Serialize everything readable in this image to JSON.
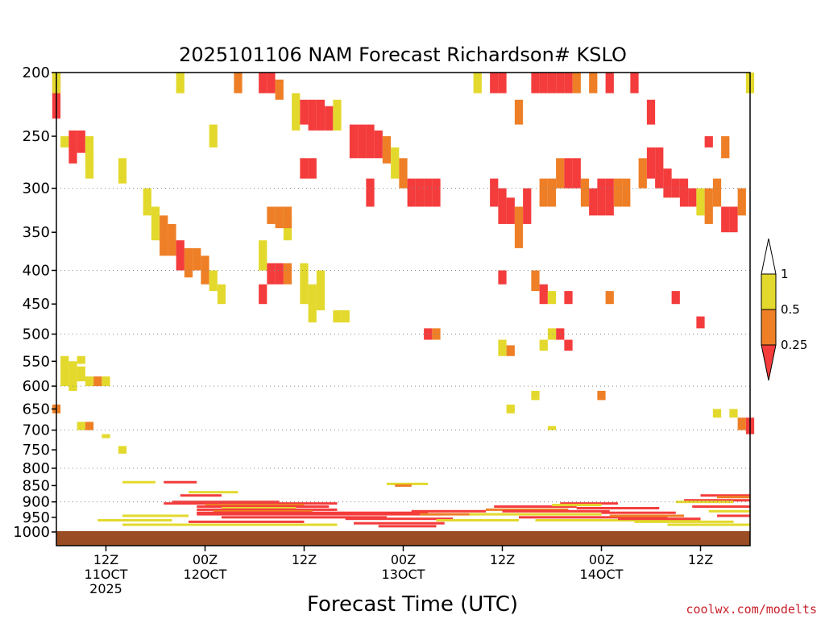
{
  "chart_data": {
    "type": "heatmap",
    "title": "2025101106 NAM Forecast Richardson# KSLO",
    "xlabel": "Forecast Time (UTC)",
    "ylabel": "",
    "y_scale": "log-pressure (hPa), inverted",
    "y_ticks": [
      200,
      250,
      300,
      350,
      400,
      450,
      500,
      550,
      600,
      650,
      700,
      750,
      800,
      850,
      900,
      950,
      1000
    ],
    "y_gridlines": [
      300,
      400,
      500,
      600,
      700,
      800,
      900
    ],
    "x_ticks": [
      {
        "hour": 6,
        "line1": "12Z",
        "line2": "11OCT",
        "line3": "2025"
      },
      {
        "hour": 18,
        "line1": "00Z",
        "line2": "12OCT",
        "line3": ""
      },
      {
        "hour": 30,
        "line1": "12Z",
        "line2": "",
        "line3": ""
      },
      {
        "hour": 42,
        "line1": "00Z",
        "line2": "13OCT",
        "line3": ""
      },
      {
        "hour": 54,
        "line1": "12Z",
        "line2": "",
        "line3": ""
      },
      {
        "hour": 66,
        "line1": "00Z",
        "line2": "14OCT",
        "line3": ""
      },
      {
        "hour": 78,
        "line1": "12Z",
        "line2": "",
        "line3": ""
      }
    ],
    "x_range_hours": [
      0,
      84
    ],
    "colorbar": {
      "levels": [
        "0.25",
        "0.5",
        "1"
      ],
      "colors": {
        "lt_025": "#f43c3c",
        "025_05": "#ee7f26",
        "05_1": "#e3d92d",
        "gt_1": "#ffffff"
      }
    },
    "ground_color": "#9a4c24",
    "categories": [
      "lt_025",
      "025_05",
      "05_1"
    ],
    "cells": [
      {
        "h": 0,
        "p1": 200,
        "p2": 235,
        "c": "lt_025"
      },
      {
        "h": 0,
        "p1": 200,
        "p2": 215,
        "c": "05_1"
      },
      {
        "h": 1,
        "p1": 250,
        "p2": 260,
        "c": "05_1"
      },
      {
        "h": 2,
        "p1": 245,
        "p2": 275,
        "c": "lt_025"
      },
      {
        "h": 3,
        "p1": 245,
        "p2": 265,
        "c": "lt_025"
      },
      {
        "h": 4,
        "p1": 250,
        "p2": 275,
        "c": "05_1"
      },
      {
        "h": 4,
        "p1": 265,
        "p2": 290,
        "c": "05_1"
      },
      {
        "h": 8,
        "p1": 270,
        "p2": 295,
        "c": "05_1"
      },
      {
        "h": 11,
        "p1": 300,
        "p2": 330,
        "c": "05_1"
      },
      {
        "h": 12,
        "p1": 320,
        "p2": 360,
        "c": "05_1"
      },
      {
        "h": 13,
        "p1": 330,
        "p2": 380,
        "c": "025_05"
      },
      {
        "h": 14,
        "p1": 340,
        "p2": 380,
        "c": "025_05"
      },
      {
        "h": 15,
        "p1": 360,
        "p2": 400,
        "c": "lt_025"
      },
      {
        "h": 16,
        "p1": 370,
        "p2": 410,
        "c": "025_05"
      },
      {
        "h": 17,
        "p1": 370,
        "p2": 400,
        "c": "025_05"
      },
      {
        "h": 18,
        "p1": 380,
        "p2": 420,
        "c": "025_05"
      },
      {
        "h": 19,
        "p1": 400,
        "p2": 430,
        "c": "05_1"
      },
      {
        "h": 20,
        "p1": 420,
        "p2": 450,
        "c": "05_1"
      },
      {
        "h": 15,
        "p1": 200,
        "p2": 215,
        "c": "05_1"
      },
      {
        "h": 19,
        "p1": 240,
        "p2": 260,
        "c": "05_1"
      },
      {
        "h": 22,
        "p1": 200,
        "p2": 215,
        "c": "025_05"
      },
      {
        "h": 25,
        "p1": 200,
        "p2": 215,
        "c": "lt_025"
      },
      {
        "h": 26,
        "p1": 200,
        "p2": 215,
        "c": "lt_025"
      },
      {
        "h": 27,
        "p1": 205,
        "p2": 220,
        "c": "025_05"
      },
      {
        "h": 29,
        "p1": 215,
        "p2": 245,
        "c": "05_1"
      },
      {
        "h": 30,
        "p1": 220,
        "p2": 240,
        "c": "lt_025"
      },
      {
        "h": 31,
        "p1": 220,
        "p2": 245,
        "c": "lt_025"
      },
      {
        "h": 32,
        "p1": 220,
        "p2": 245,
        "c": "lt_025"
      },
      {
        "h": 33,
        "p1": 225,
        "p2": 245,
        "c": "lt_025"
      },
      {
        "h": 34,
        "p1": 220,
        "p2": 245,
        "c": "05_1"
      },
      {
        "h": 36,
        "p1": 240,
        "p2": 270,
        "c": "lt_025"
      },
      {
        "h": 37,
        "p1": 240,
        "p2": 270,
        "c": "lt_025"
      },
      {
        "h": 38,
        "p1": 240,
        "p2": 270,
        "c": "lt_025"
      },
      {
        "h": 39,
        "p1": 245,
        "p2": 270,
        "c": "lt_025"
      },
      {
        "h": 40,
        "p1": 250,
        "p2": 275,
        "c": "025_05"
      },
      {
        "h": 41,
        "p1": 260,
        "p2": 290,
        "c": "05_1"
      },
      {
        "h": 42,
        "p1": 270,
        "p2": 300,
        "c": "025_05"
      },
      {
        "h": 43,
        "p1": 290,
        "p2": 320,
        "c": "lt_025"
      },
      {
        "h": 44,
        "p1": 290,
        "p2": 320,
        "c": "lt_025"
      },
      {
        "h": 45,
        "p1": 290,
        "p2": 320,
        "c": "lt_025"
      },
      {
        "h": 46,
        "p1": 290,
        "p2": 320,
        "c": "lt_025"
      },
      {
        "h": 38,
        "p1": 290,
        "p2": 320,
        "c": "lt_025"
      },
      {
        "h": 30,
        "p1": 270,
        "p2": 290,
        "c": "lt_025"
      },
      {
        "h": 31,
        "p1": 270,
        "p2": 290,
        "c": "lt_025"
      },
      {
        "h": 28,
        "p1": 330,
        "p2": 360,
        "c": "05_1"
      },
      {
        "h": 28,
        "p1": 320,
        "p2": 345,
        "c": "025_05"
      },
      {
        "h": 26,
        "p1": 320,
        "p2": 340,
        "c": "025_05"
      },
      {
        "h": 27,
        "p1": 320,
        "p2": 345,
        "c": "025_05"
      },
      {
        "h": 25,
        "p1": 360,
        "p2": 400,
        "c": "05_1"
      },
      {
        "h": 26,
        "p1": 390,
        "p2": 420,
        "c": "lt_025"
      },
      {
        "h": 27,
        "p1": 390,
        "p2": 420,
        "c": "lt_025"
      },
      {
        "h": 28,
        "p1": 390,
        "p2": 420,
        "c": "025_05"
      },
      {
        "h": 30,
        "p1": 390,
        "p2": 450,
        "c": "05_1"
      },
      {
        "h": 31,
        "p1": 420,
        "p2": 480,
        "c": "05_1"
      },
      {
        "h": 32,
        "p1": 400,
        "p2": 460,
        "c": "05_1"
      },
      {
        "h": 25,
        "p1": 420,
        "p2": 450,
        "c": "lt_025"
      },
      {
        "h": 34,
        "p1": 460,
        "p2": 480,
        "c": "05_1"
      },
      {
        "h": 35,
        "p1": 460,
        "p2": 480,
        "c": "05_1"
      },
      {
        "h": 45,
        "p1": 490,
        "p2": 510,
        "c": "lt_025"
      },
      {
        "h": 46,
        "p1": 490,
        "p2": 510,
        "c": "025_05"
      },
      {
        "h": 51,
        "p1": 200,
        "p2": 215,
        "c": "05_1"
      },
      {
        "h": 53,
        "p1": 200,
        "p2": 215,
        "c": "lt_025"
      },
      {
        "h": 54,
        "p1": 200,
        "p2": 215,
        "c": "lt_025"
      },
      {
        "h": 56,
        "p1": 220,
        "p2": 240,
        "c": "025_05"
      },
      {
        "h": 58,
        "p1": 200,
        "p2": 215,
        "c": "lt_025"
      },
      {
        "h": 59,
        "p1": 200,
        "p2": 215,
        "c": "lt_025"
      },
      {
        "h": 60,
        "p1": 200,
        "p2": 215,
        "c": "lt_025"
      },
      {
        "h": 61,
        "p1": 200,
        "p2": 215,
        "c": "lt_025"
      },
      {
        "h": 62,
        "p1": 200,
        "p2": 215,
        "c": "lt_025"
      },
      {
        "h": 63,
        "p1": 200,
        "p2": 215,
        "c": "025_05"
      },
      {
        "h": 65,
        "p1": 200,
        "p2": 215,
        "c": "025_05"
      },
      {
        "h": 67,
        "p1": 200,
        "p2": 215,
        "c": "lt_025"
      },
      {
        "h": 70,
        "p1": 200,
        "p2": 215,
        "c": "lt_025"
      },
      {
        "h": 72,
        "p1": 220,
        "p2": 240,
        "c": "lt_025"
      },
      {
        "h": 53,
        "p1": 290,
        "p2": 320,
        "c": "lt_025"
      },
      {
        "h": 54,
        "p1": 300,
        "p2": 340,
        "c": "lt_025"
      },
      {
        "h": 55,
        "p1": 310,
        "p2": 340,
        "c": "lt_025"
      },
      {
        "h": 56,
        "p1": 320,
        "p2": 370,
        "c": "025_05"
      },
      {
        "h": 57,
        "p1": 300,
        "p2": 340,
        "c": "lt_025"
      },
      {
        "h": 59,
        "p1": 290,
        "p2": 320,
        "c": "025_05"
      },
      {
        "h": 60,
        "p1": 290,
        "p2": 320,
        "c": "025_05"
      },
      {
        "h": 61,
        "p1": 270,
        "p2": 300,
        "c": "025_05"
      },
      {
        "h": 62,
        "p1": 270,
        "p2": 300,
        "c": "lt_025"
      },
      {
        "h": 63,
        "p1": 270,
        "p2": 300,
        "c": "lt_025"
      },
      {
        "h": 64,
        "p1": 290,
        "p2": 320,
        "c": "025_05"
      },
      {
        "h": 65,
        "p1": 300,
        "p2": 330,
        "c": "lt_025"
      },
      {
        "h": 66,
        "p1": 290,
        "p2": 330,
        "c": "lt_025"
      },
      {
        "h": 67,
        "p1": 290,
        "p2": 330,
        "c": "lt_025"
      },
      {
        "h": 68,
        "p1": 290,
        "p2": 320,
        "c": "025_05"
      },
      {
        "h": 69,
        "p1": 290,
        "p2": 320,
        "c": "025_05"
      },
      {
        "h": 71,
        "p1": 270,
        "p2": 300,
        "c": "025_05"
      },
      {
        "h": 72,
        "p1": 260,
        "p2": 290,
        "c": "lt_025"
      },
      {
        "h": 73,
        "p1": 260,
        "p2": 300,
        "c": "lt_025"
      },
      {
        "h": 74,
        "p1": 280,
        "p2": 310,
        "c": "lt_025"
      },
      {
        "h": 75,
        "p1": 290,
        "p2": 310,
        "c": "lt_025"
      },
      {
        "h": 76,
        "p1": 290,
        "p2": 320,
        "c": "lt_025"
      },
      {
        "h": 77,
        "p1": 300,
        "p2": 320,
        "c": "lt_025"
      },
      {
        "h": 78,
        "p1": 300,
        "p2": 330,
        "c": "05_1"
      },
      {
        "h": 79,
        "p1": 300,
        "p2": 340,
        "c": "025_05"
      },
      {
        "h": 80,
        "p1": 290,
        "p2": 320,
        "c": "025_05"
      },
      {
        "h": 81,
        "p1": 320,
        "p2": 350,
        "c": "lt_025"
      },
      {
        "h": 82,
        "p1": 320,
        "p2": 350,
        "c": "lt_025"
      },
      {
        "h": 83,
        "p1": 300,
        "p2": 330,
        "c": "025_05"
      },
      {
        "h": 79,
        "p1": 250,
        "p2": 260,
        "c": "lt_025"
      },
      {
        "h": 81,
        "p1": 250,
        "p2": 270,
        "c": "025_05"
      },
      {
        "h": 84,
        "p1": 200,
        "p2": 215,
        "c": "05_1"
      },
      {
        "h": 54,
        "p1": 400,
        "p2": 420,
        "c": "lt_025"
      },
      {
        "h": 58,
        "p1": 400,
        "p2": 430,
        "c": "025_05"
      },
      {
        "h": 59,
        "p1": 420,
        "p2": 450,
        "c": "lt_025"
      },
      {
        "h": 60,
        "p1": 430,
        "p2": 450,
        "c": "05_1"
      },
      {
        "h": 62,
        "p1": 430,
        "p2": 450,
        "c": "lt_025"
      },
      {
        "h": 67,
        "p1": 430,
        "p2": 450,
        "c": "025_05"
      },
      {
        "h": 75,
        "p1": 430,
        "p2": 450,
        "c": "lt_025"
      },
      {
        "h": 78,
        "p1": 470,
        "p2": 490,
        "c": "lt_025"
      },
      {
        "h": 54,
        "p1": 510,
        "p2": 540,
        "c": "05_1"
      },
      {
        "h": 55,
        "p1": 520,
        "p2": 540,
        "c": "025_05"
      },
      {
        "h": 59,
        "p1": 510,
        "p2": 530,
        "c": "05_1"
      },
      {
        "h": 61,
        "p1": 490,
        "p2": 510,
        "c": "lt_025"
      },
      {
        "h": 62,
        "p1": 510,
        "p2": 530,
        "c": "lt_025"
      },
      {
        "h": 60,
        "p1": 490,
        "p2": 510,
        "c": "05_1"
      },
      {
        "h": 1,
        "p1": 540,
        "p2": 600,
        "c": "05_1"
      },
      {
        "h": 2,
        "p1": 550,
        "p2": 610,
        "c": "05_1"
      },
      {
        "h": 3,
        "p1": 560,
        "p2": 590,
        "c": "05_1"
      },
      {
        "h": 4,
        "p1": 580,
        "p2": 600,
        "c": "05_1"
      },
      {
        "h": 3,
        "p1": 540,
        "p2": 555,
        "c": "05_1"
      },
      {
        "h": 5,
        "p1": 580,
        "p2": 600,
        "c": "025_05"
      },
      {
        "h": 6,
        "p1": 580,
        "p2": 600,
        "c": "05_1"
      },
      {
        "h": 0,
        "p1": 640,
        "p2": 660,
        "c": "025_05"
      },
      {
        "h": 3,
        "p1": 680,
        "p2": 700,
        "c": "05_1"
      },
      {
        "h": 4,
        "p1": 680,
        "p2": 700,
        "c": "025_05"
      },
      {
        "h": 6,
        "p1": 710,
        "p2": 720,
        "c": "05_1"
      },
      {
        "h": 8,
        "p1": 740,
        "p2": 760,
        "c": "05_1"
      },
      {
        "h": 55,
        "p1": 640,
        "p2": 660,
        "c": "05_1"
      },
      {
        "h": 58,
        "p1": 610,
        "p2": 630,
        "c": "05_1"
      },
      {
        "h": 60,
        "p1": 690,
        "p2": 700,
        "c": "05_1"
      },
      {
        "h": 66,
        "p1": 610,
        "p2": 630,
        "c": "025_05"
      },
      {
        "h": 80,
        "p1": 650,
        "p2": 670,
        "c": "05_1"
      },
      {
        "h": 82,
        "p1": 650,
        "p2": 670,
        "c": "05_1"
      },
      {
        "h": 83,
        "p1": 670,
        "p2": 700,
        "c": "025_05"
      },
      {
        "h": 84,
        "p1": 670,
        "p2": 710,
        "c": "lt_025"
      }
    ],
    "bl_rows": [
      {
        "p": 840,
        "c": "05_1",
        "x0": 8,
        "x1": 12
      },
      {
        "p": 840,
        "c": "lt_025",
        "x0": 13,
        "x1": 17
      },
      {
        "p": 845,
        "c": "05_1",
        "x0": 40,
        "x1": 45
      },
      {
        "p": 850,
        "c": "025_05",
        "x0": 41,
        "x1": 43
      },
      {
        "p": 870,
        "c": "05_1",
        "x0": 16,
        "x1": 22
      },
      {
        "p": 880,
        "c": "lt_025",
        "x0": 15,
        "x1": 20
      },
      {
        "p": 900,
        "c": "lt_025",
        "x0": 14,
        "x1": 27
      },
      {
        "p": 905,
        "c": "lt_025",
        "x0": 13,
        "x1": 34
      },
      {
        "p": 910,
        "c": "025_05",
        "x0": 18,
        "x1": 30
      },
      {
        "p": 915,
        "c": "lt_025",
        "x0": 17,
        "x1": 33
      },
      {
        "p": 920,
        "c": "05_1",
        "x0": 20,
        "x1": 29
      },
      {
        "p": 925,
        "c": "lt_025",
        "x0": 17,
        "x1": 34
      },
      {
        "p": 930,
        "c": "025_05",
        "x0": 19,
        "x1": 31
      },
      {
        "p": 935,
        "c": "lt_025",
        "x0": 17,
        "x1": 45
      },
      {
        "p": 940,
        "c": "lt_025",
        "x0": 17,
        "x1": 47
      },
      {
        "p": 945,
        "c": "05_1",
        "x0": 8,
        "x1": 16
      },
      {
        "p": 950,
        "c": "lt_025",
        "x0": 20,
        "x1": 40
      },
      {
        "p": 955,
        "c": "lt_025",
        "x0": 35,
        "x1": 48
      },
      {
        "p": 960,
        "c": "05_1",
        "x0": 5,
        "x1": 14
      },
      {
        "p": 965,
        "c": "lt_025",
        "x0": 16,
        "x1": 30
      },
      {
        "p": 970,
        "c": "lt_025",
        "x0": 36,
        "x1": 47
      },
      {
        "p": 975,
        "c": "05_1",
        "x0": 8,
        "x1": 34
      },
      {
        "p": 980,
        "c": "lt_025",
        "x0": 39,
        "x1": 46
      },
      {
        "p": 930,
        "c": "lt_025",
        "x0": 43,
        "x1": 52
      },
      {
        "p": 940,
        "c": "025_05",
        "x0": 44,
        "x1": 50
      },
      {
        "p": 960,
        "c": "05_1",
        "x0": 46,
        "x1": 56
      },
      {
        "p": 915,
        "c": "lt_025",
        "x0": 53,
        "x1": 63
      },
      {
        "p": 925,
        "c": "025_05",
        "x0": 52,
        "x1": 62
      },
      {
        "p": 930,
        "c": "lt_025",
        "x0": 54,
        "x1": 67
      },
      {
        "p": 940,
        "c": "05_1",
        "x0": 50,
        "x1": 66
      },
      {
        "p": 950,
        "c": "lt_025",
        "x0": 56,
        "x1": 74
      },
      {
        "p": 960,
        "c": "05_1",
        "x0": 58,
        "x1": 78
      },
      {
        "p": 905,
        "c": "lt_025",
        "x0": 61,
        "x1": 68
      },
      {
        "p": 910,
        "c": "05_1",
        "x0": 60,
        "x1": 66
      },
      {
        "p": 920,
        "c": "lt_025",
        "x0": 63,
        "x1": 73
      },
      {
        "p": 935,
        "c": "lt_025",
        "x0": 66,
        "x1": 75
      },
      {
        "p": 945,
        "c": "025_05",
        "x0": 67,
        "x1": 76
      },
      {
        "p": 955,
        "c": "lt_025",
        "x0": 68,
        "x1": 78
      },
      {
        "p": 965,
        "c": "05_1",
        "x0": 70,
        "x1": 82
      },
      {
        "p": 975,
        "c": "05_1",
        "x0": 74,
        "x1": 84
      },
      {
        "p": 880,
        "c": "lt_025",
        "x0": 78,
        "x1": 84
      },
      {
        "p": 885,
        "c": "025_05",
        "x0": 80,
        "x1": 84
      },
      {
        "p": 895,
        "c": "lt_025",
        "x0": 76,
        "x1": 84
      },
      {
        "p": 900,
        "c": "05_1",
        "x0": 75,
        "x1": 82
      },
      {
        "p": 915,
        "c": "lt_025",
        "x0": 77,
        "x1": 84
      },
      {
        "p": 930,
        "c": "05_1",
        "x0": 79,
        "x1": 84
      },
      {
        "p": 945,
        "c": "lt_025",
        "x0": 80,
        "x1": 84
      }
    ]
  },
  "credit": "coolwx.com/modelts"
}
